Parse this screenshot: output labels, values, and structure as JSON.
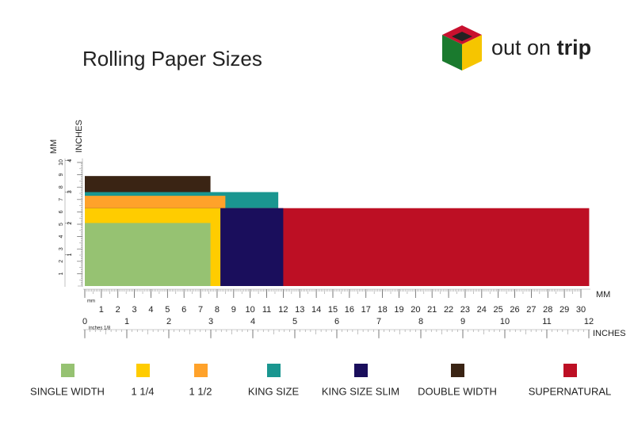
{
  "chart_data": {
    "type": "rect",
    "title": "Rolling Paper Sizes",
    "brand": {
      "prefix": "out on",
      "bold": "trip"
    },
    "x_label": "MM",
    "x2_label": "INCHES",
    "y_label": "MM",
    "y2_label": "INCHES",
    "x_unit_note": "mm",
    "x2_unit_note": "inches 1/8",
    "xlim": [
      0,
      30
    ],
    "xticks": [
      0,
      1,
      2,
      3,
      4,
      5,
      6,
      7,
      8,
      9,
      10,
      11,
      12,
      13,
      14,
      15,
      16,
      17,
      18,
      19,
      20,
      21,
      22,
      23,
      24,
      25,
      26,
      27,
      28,
      29,
      30
    ],
    "x2lim": [
      0,
      12
    ],
    "x2ticks": [
      0,
      1,
      2,
      3,
      4,
      5,
      6,
      7,
      8,
      9,
      10,
      11,
      12
    ],
    "ylim": [
      0,
      10
    ],
    "yticks": [
      1,
      2,
      3,
      4,
      5,
      6,
      7,
      8,
      9,
      10
    ],
    "y2lim": [
      0,
      3.94
    ],
    "y2ticks": [
      1,
      2,
      3,
      4
    ],
    "series": [
      {
        "name": "SINGLE WIDTH",
        "color": "#96c272",
        "length": 7.6,
        "width": 5.1
      },
      {
        "name": "1 1/4",
        "color": "#ffcc00",
        "length": 8.2,
        "width": 6.3
      },
      {
        "name": "1 1/2",
        "color": "#ffa22a",
        "length": 8.5,
        "width": 7.3
      },
      {
        "name": "KING SIZE",
        "color": "#1a9690",
        "length": 11.7,
        "width": 7.6
      },
      {
        "name": "KING SIZE SLIM",
        "color": "#1a0e5c",
        "length": 12.0,
        "width": 6.3
      },
      {
        "name": "DOUBLE WIDTH",
        "color": "#3a2414",
        "length": 7.6,
        "width": 8.9
      },
      {
        "name": "SUPERNATURAL",
        "color": "#bd0f24",
        "length": 30.5,
        "width": 6.3
      }
    ]
  }
}
